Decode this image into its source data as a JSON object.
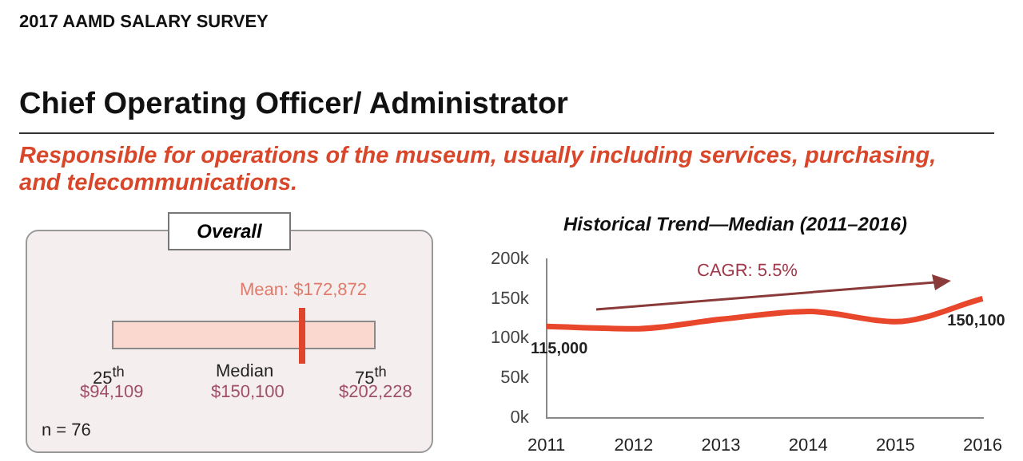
{
  "chart_data": [
    {
      "type": "other",
      "title": "Chief Operating Officer/ Administrator",
      "subtitle": "Responsible for operations of the museum, usually including services, purchasing, and telecommunications.",
      "annotations": [
        "2017 AAMD SALARY SURVEY",
        "Overall",
        "Mean: $172,872",
        "25$^{th}$",
        "$94,109",
        "Median",
        "$150,100",
        "75$^{th}$",
        "$202,228",
        "n = 76"
      ]
    },
    {
      "type": "line",
      "title": "Historical Trend—Median (2011–2016)",
      "categories": [
        "2011",
        "2012",
        "2013",
        "2014",
        "2015",
        "2016"
      ],
      "values": [
        115000,
        112000,
        124000,
        134000,
        121000,
        150100
      ],
      "color": "#e8472b",
      "value_labels": [
        "115,000",
        null,
        null,
        null,
        null,
        "150,100"
      ],
      "ylim": [
        0,
        200000
      ],
      "yticks": [
        {
          "value": 0,
          "label": "0k"
        },
        {
          "value": 50000,
          "label": "50k"
        },
        {
          "value": 100000,
          "label": "100k"
        },
        {
          "value": 150000,
          "label": "150k"
        },
        {
          "value": 200000,
          "label": "200k"
        }
      ],
      "grid": false,
      "legend": false,
      "marker": "none",
      "annotations": [
        "CAGR: 5.5%"
      ]
    }
  ]
}
